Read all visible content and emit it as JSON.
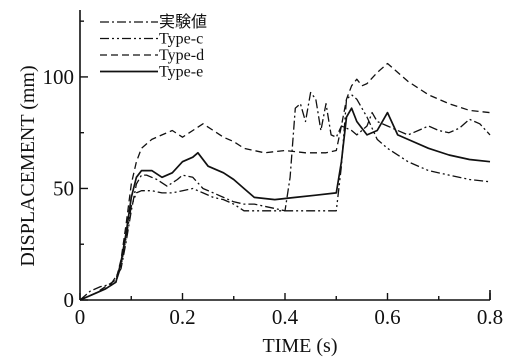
{
  "chart_data": {
    "type": "line",
    "title": "",
    "xlabel": "TIME (s)",
    "ylabel": "DISPLACEMENT (mm)",
    "xlim": [
      0,
      0.8
    ],
    "ylim": [
      0,
      130
    ],
    "xticks": [
      0,
      0.2,
      0.4,
      0.6,
      0.8
    ],
    "xtick_labels": [
      "0",
      "0.2",
      "0.4",
      "0.6",
      "0.8"
    ],
    "yticks": [
      0,
      50,
      100
    ],
    "ytick_labels": [
      "0",
      "50",
      "100"
    ],
    "grid": false,
    "legend_position": "top-left",
    "series": [
      {
        "name": "実験値",
        "style": "dashdot",
        "x": [
          0.0,
          0.02,
          0.04,
          0.06,
          0.08,
          0.09,
          0.1,
          0.11,
          0.12,
          0.13,
          0.15,
          0.17,
          0.19,
          0.2,
          0.22,
          0.24,
          0.26,
          0.28,
          0.3,
          0.32,
          0.34,
          0.36,
          0.38,
          0.4,
          0.41,
          0.42,
          0.43,
          0.44,
          0.45,
          0.46,
          0.47,
          0.48,
          0.49,
          0.5,
          0.51,
          0.52,
          0.53,
          0.54,
          0.55,
          0.56,
          0.57,
          0.58,
          0.6,
          0.62,
          0.64,
          0.66,
          0.68,
          0.7,
          0.72,
          0.74,
          0.76,
          0.78,
          0.8
        ],
        "y": [
          0,
          4,
          6,
          7,
          14,
          26,
          40,
          52,
          56,
          56,
          54,
          51,
          54,
          56,
          55,
          50,
          48,
          46,
          44,
          43,
          43,
          42,
          41,
          40,
          55,
          86,
          88,
          80,
          93,
          90,
          76,
          88,
          74,
          73,
          78,
          77,
          76,
          74,
          76,
          78,
          84,
          80,
          78,
          76,
          74,
          76,
          78,
          76,
          75,
          77,
          81,
          79,
          74
        ]
      },
      {
        "name": "Type-c",
        "style": "dashdotdot",
        "x": [
          0.0,
          0.03,
          0.05,
          0.07,
          0.08,
          0.09,
          0.1,
          0.11,
          0.12,
          0.14,
          0.16,
          0.18,
          0.2,
          0.22,
          0.24,
          0.26,
          0.28,
          0.3,
          0.32,
          0.36,
          0.4,
          0.44,
          0.48,
          0.5,
          0.51,
          0.52,
          0.53,
          0.54,
          0.56,
          0.58,
          0.6,
          0.64,
          0.68,
          0.72,
          0.76,
          0.8
        ],
        "y": [
          0,
          3,
          5,
          8,
          15,
          28,
          42,
          48,
          49,
          49,
          48,
          48,
          49,
          50,
          48,
          46,
          45,
          43,
          40,
          40,
          40,
          40,
          40,
          40,
          60,
          90,
          92,
          90,
          82,
          72,
          68,
          62,
          58,
          56,
          54,
          53
        ]
      },
      {
        "name": "Type-d",
        "style": "dashed",
        "x": [
          0.0,
          0.03,
          0.05,
          0.07,
          0.08,
          0.09,
          0.1,
          0.11,
          0.12,
          0.14,
          0.16,
          0.18,
          0.2,
          0.22,
          0.24,
          0.26,
          0.28,
          0.3,
          0.32,
          0.36,
          0.4,
          0.44,
          0.48,
          0.5,
          0.51,
          0.52,
          0.53,
          0.54,
          0.55,
          0.56,
          0.58,
          0.6,
          0.64,
          0.68,
          0.72,
          0.76,
          0.8
        ],
        "y": [
          0,
          3,
          6,
          9,
          18,
          34,
          52,
          62,
          68,
          72,
          74,
          76,
          73,
          76,
          79,
          76,
          73,
          71,
          68,
          66,
          67,
          66,
          66,
          67,
          78,
          90,
          96,
          99,
          96,
          97,
          102,
          106,
          98,
          92,
          88,
          85,
          84
        ]
      },
      {
        "name": "Type-e",
        "style": "solid",
        "x": [
          0.0,
          0.03,
          0.05,
          0.07,
          0.08,
          0.09,
          0.1,
          0.11,
          0.12,
          0.14,
          0.16,
          0.18,
          0.2,
          0.22,
          0.23,
          0.25,
          0.28,
          0.3,
          0.32,
          0.34,
          0.38,
          0.42,
          0.46,
          0.5,
          0.51,
          0.52,
          0.53,
          0.54,
          0.56,
          0.58,
          0.6,
          0.62,
          0.64,
          0.68,
          0.72,
          0.76,
          0.8
        ],
        "y": [
          0,
          3,
          5,
          8,
          17,
          30,
          46,
          55,
          58,
          58,
          55,
          57,
          62,
          64,
          66,
          60,
          57,
          54,
          50,
          46,
          45,
          46,
          47,
          48,
          62,
          82,
          86,
          80,
          74,
          76,
          84,
          74,
          72,
          68,
          65,
          63,
          62
        ]
      }
    ]
  }
}
